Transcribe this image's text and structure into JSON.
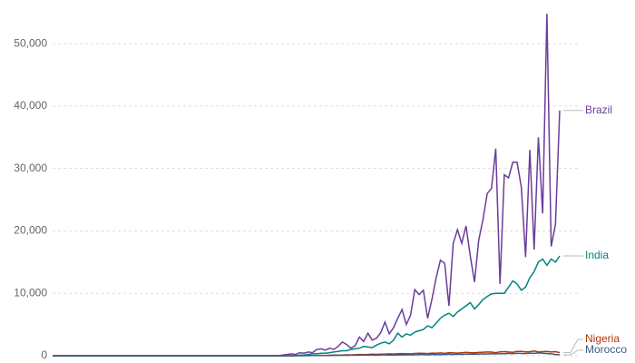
{
  "chart_data": {
    "type": "line",
    "ylim": [
      0,
      57000
    ],
    "yticks": [
      0,
      {
        "value": 10000,
        "label": "10,000"
      },
      {
        "value": 20000,
        "label": "20,000"
      },
      {
        "value": 30000,
        "label": "30,000"
      },
      {
        "value": 40000,
        "label": "40,000"
      },
      {
        "value": 50000,
        "label": "50,000"
      }
    ],
    "grid": true,
    "series": [
      {
        "name": "Brazil",
        "color": "#6a3d9a",
        "values": [
          0,
          0,
          0,
          0,
          0,
          0,
          0,
          0,
          0,
          0,
          0,
          0,
          0,
          0,
          0,
          0,
          0,
          0,
          0,
          0,
          0,
          0,
          0,
          0,
          0,
          0,
          0,
          0,
          0,
          0,
          0,
          0,
          0,
          0,
          0,
          0,
          0,
          0,
          0,
          0,
          0,
          0,
          0,
          0,
          0,
          0,
          0,
          0,
          0,
          0,
          0,
          0,
          0,
          0,
          100,
          200,
          300,
          200,
          500,
          400,
          600,
          500,
          1000,
          1100,
          900,
          1200,
          1000,
          1500,
          2200,
          1800,
          1200,
          1600,
          3000,
          2300,
          3600,
          2500,
          2800,
          3700,
          5400,
          3500,
          4500,
          6000,
          7400,
          5000,
          6500,
          10600,
          9800,
          10500,
          6000,
          9000,
          12500,
          15300,
          14800,
          8000,
          18000,
          20200,
          18000,
          20800,
          16000,
          11800,
          18500,
          21800,
          26000,
          26800,
          33200,
          11500,
          29000,
          28500,
          31000,
          31000,
          27000,
          15800,
          33000,
          17000,
          35000,
          22800,
          54800,
          17500,
          21000,
          39300
        ]
      },
      {
        "name": "India",
        "color": "#00847e",
        "values": [
          0,
          0,
          0,
          0,
          0,
          0,
          0,
          0,
          0,
          0,
          0,
          0,
          0,
          0,
          0,
          0,
          0,
          0,
          0,
          0,
          0,
          0,
          0,
          0,
          0,
          0,
          0,
          0,
          0,
          0,
          0,
          0,
          0,
          0,
          0,
          0,
          0,
          0,
          0,
          0,
          0,
          0,
          0,
          0,
          0,
          0,
          0,
          0,
          0,
          0,
          0,
          0,
          0,
          0,
          0,
          0,
          0,
          0,
          100,
          100,
          200,
          300,
          300,
          400,
          400,
          500,
          600,
          700,
          800,
          800,
          1000,
          1100,
          1200,
          1500,
          1400,
          1300,
          1700,
          2000,
          2200,
          1900,
          2500,
          3600,
          3000,
          3500,
          3300,
          3800,
          4000,
          4200,
          4800,
          4500,
          5200,
          6000,
          6500,
          6800,
          6300,
          7000,
          7500,
          8000,
          8500,
          7500,
          8200,
          9000,
          9500,
          9900,
          10000,
          10000,
          10000,
          11000,
          12000,
          11500,
          10500,
          11000,
          12500,
          13500,
          15000,
          15500,
          14500,
          15500,
          15000,
          16000
        ]
      },
      {
        "name": "Nigeria",
        "color": "#b13507",
        "values": [
          0,
          0,
          0,
          0,
          0,
          0,
          0,
          0,
          0,
          0,
          0,
          0,
          0,
          0,
          0,
          0,
          0,
          0,
          0,
          0,
          0,
          0,
          0,
          0,
          0,
          0,
          0,
          0,
          0,
          0,
          0,
          0,
          0,
          0,
          0,
          0,
          0,
          0,
          0,
          0,
          0,
          0,
          0,
          0,
          0,
          0,
          0,
          0,
          0,
          0,
          0,
          0,
          0,
          0,
          0,
          0,
          0,
          10,
          20,
          20,
          30,
          40,
          50,
          60,
          50,
          80,
          100,
          90,
          120,
          150,
          130,
          160,
          200,
          180,
          200,
          240,
          220,
          260,
          250,
          300,
          280,
          320,
          350,
          330,
          300,
          360,
          400,
          380,
          350,
          420,
          400,
          450,
          380,
          500,
          450,
          420,
          480,
          550,
          500,
          460,
          520,
          560,
          600,
          580,
          500,
          620,
          650,
          600,
          550,
          700,
          680,
          620,
          660,
          750,
          600,
          650,
          700,
          600,
          650,
          500
        ]
      },
      {
        "name": "Morocco",
        "color": "#3b5b8c",
        "values": [
          0,
          0,
          0,
          0,
          0,
          0,
          0,
          0,
          0,
          0,
          0,
          0,
          0,
          0,
          0,
          0,
          0,
          0,
          0,
          0,
          0,
          0,
          0,
          0,
          0,
          0,
          0,
          0,
          0,
          0,
          0,
          0,
          0,
          0,
          0,
          0,
          0,
          0,
          0,
          0,
          0,
          0,
          0,
          0,
          0,
          0,
          0,
          0,
          0,
          0,
          0,
          0,
          0,
          0,
          0,
          0,
          0,
          0,
          10,
          20,
          20,
          30,
          30,
          40,
          50,
          40,
          60,
          70,
          80,
          60,
          90,
          100,
          80,
          100,
          120,
          110,
          90,
          130,
          140,
          100,
          120,
          150,
          130,
          150,
          160,
          140,
          170,
          180,
          150,
          200,
          180,
          190,
          210,
          230,
          200,
          250,
          220,
          260,
          240,
          280,
          250,
          300,
          270,
          320,
          290,
          350,
          300,
          380,
          330,
          400,
          360,
          350,
          420,
          380,
          450,
          400,
          350,
          300,
          200,
          150
        ]
      }
    ]
  }
}
